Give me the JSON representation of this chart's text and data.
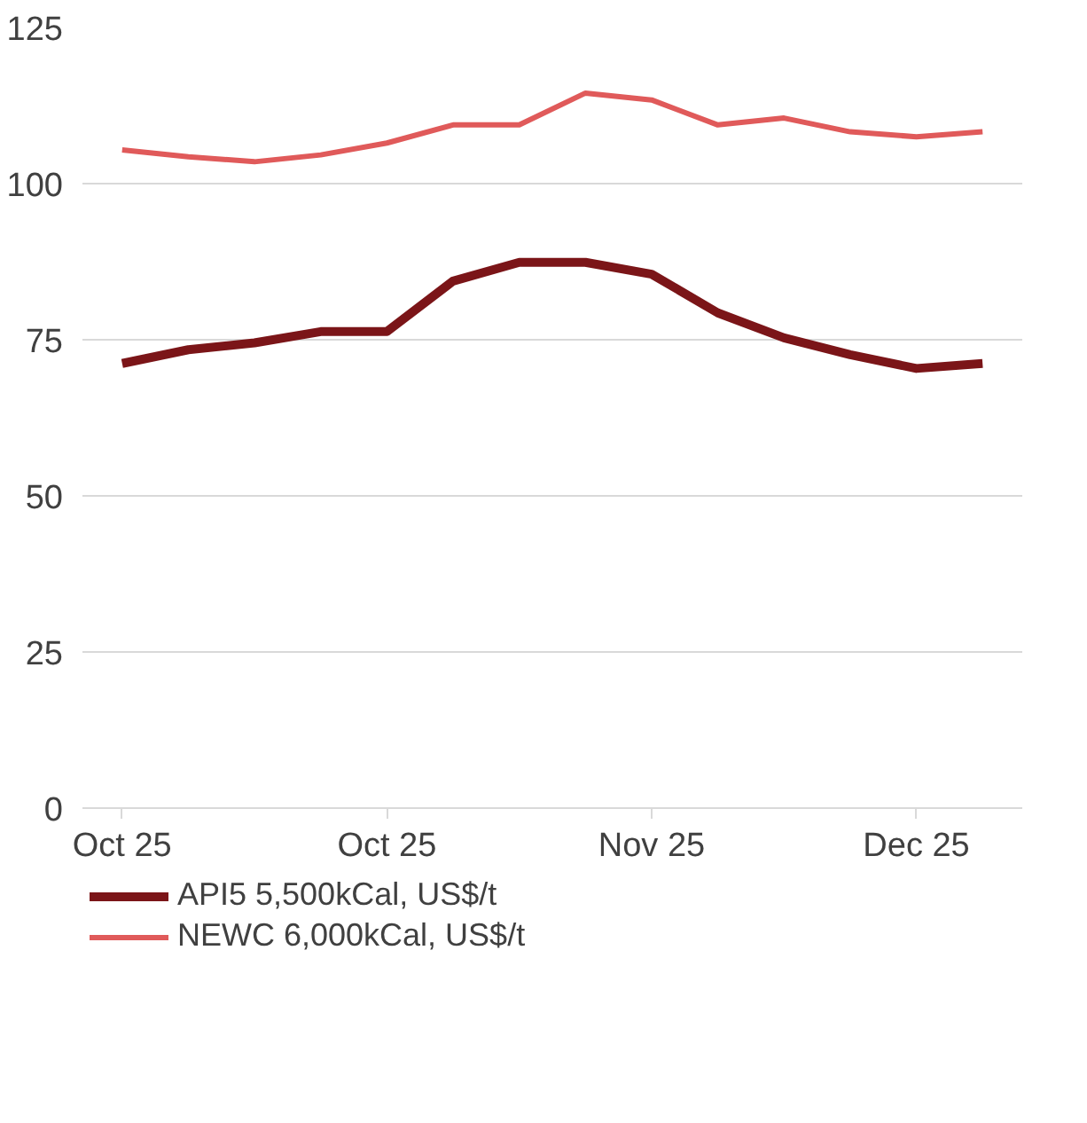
{
  "chart_data": {
    "type": "line",
    "categories": [
      "Oct 25",
      null,
      null,
      null,
      "Oct 25",
      null,
      null,
      null,
      "Nov 25",
      null,
      null,
      null,
      "Dec 25",
      null
    ],
    "series": [
      {
        "name": "API5 5,500kCal, US$/t",
        "color": "#7b1518",
        "values": [
          71.2,
          73.4,
          74.5,
          76.3,
          76.3,
          84.4,
          87.4,
          87.4,
          85.5,
          79.3,
          75.3,
          72.6,
          70.4,
          71.2
        ]
      },
      {
        "name": "NEWC 6,000kCal, US$/t",
        "color": "#e05a5a",
        "values": [
          105.4,
          104.3,
          103.5,
          104.6,
          106.5,
          109.4,
          109.4,
          114.5,
          113.4,
          109.4,
          110.5,
          108.3,
          107.5,
          108.3
        ]
      }
    ],
    "ylim": [
      0,
      125
    ],
    "yticks": [
      0,
      25,
      50,
      75,
      100,
      125
    ],
    "grid": "y",
    "legend": "bottom",
    "marker": "none",
    "line_style": "solid"
  }
}
